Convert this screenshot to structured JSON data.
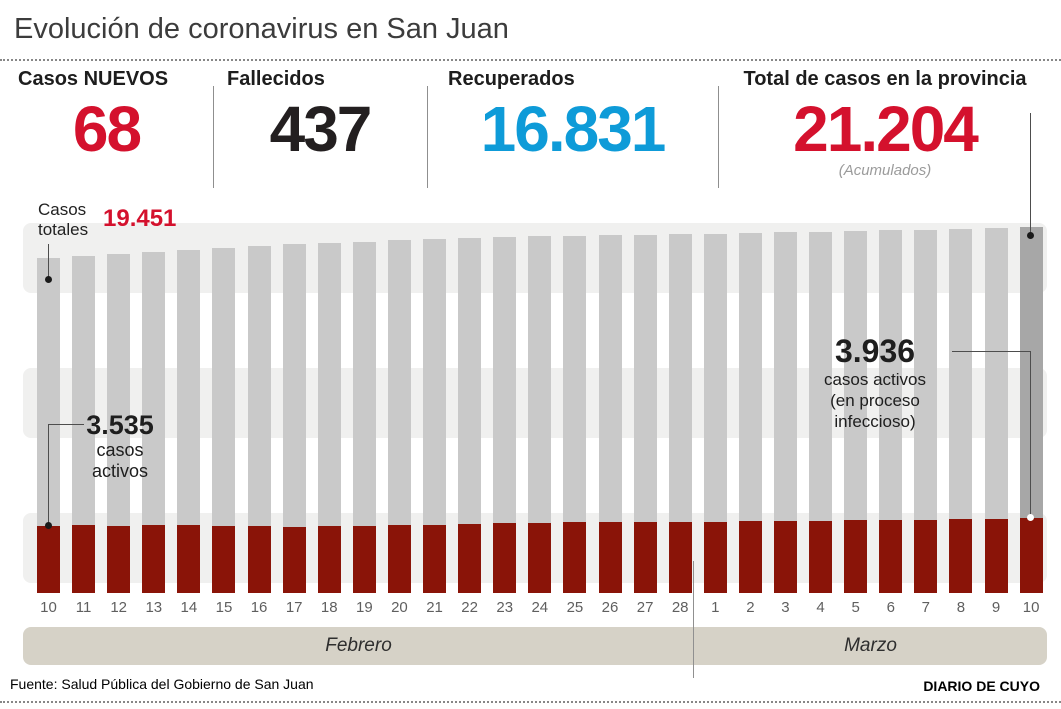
{
  "title": "Evolución de coronavirus en San Juan",
  "stats": [
    {
      "label": "Casos NUEVOS",
      "value": "68",
      "color": "#d4112d"
    },
    {
      "label": "Fallecidos",
      "value": "437",
      "color": "#231f20"
    },
    {
      "label": "Recuperados",
      "value": "16.831",
      "color": "#0e9bd8"
    },
    {
      "label": "Total de casos en la provincia",
      "value": "21.204",
      "color": "#d4112d",
      "note": "(Acumulados)"
    }
  ],
  "annotations": {
    "totals_callout": {
      "line1": "Casos",
      "line2": "totales",
      "value": "19.451",
      "value_color": "#d4112d"
    },
    "first_active": {
      "value": "3.535",
      "line1": "casos",
      "line2": "activos"
    },
    "last_active": {
      "value": "3.936",
      "line1": "casos activos",
      "line2": "(en proceso",
      "line3": "infeccioso)"
    }
  },
  "chart_data": {
    "type": "bar",
    "title": "Evolución de coronavirus en San Juan",
    "x_tick_labels": [
      "10",
      "11",
      "12",
      "13",
      "14",
      "15",
      "16",
      "17",
      "18",
      "19",
      "20",
      "21",
      "22",
      "23",
      "24",
      "25",
      "26",
      "27",
      "28",
      "1",
      "2",
      "3",
      "4",
      "5",
      "6",
      "7",
      "8",
      "9",
      "10"
    ],
    "month_bands": [
      {
        "label": "Febrero",
        "days": 19
      },
      {
        "label": "Marzo",
        "days": 10
      }
    ],
    "series": [
      {
        "name": "Casos totales",
        "color": "#c9c9c9",
        "values": [
          19451,
          19570,
          19670,
          19760,
          19880,
          19990,
          20110,
          20225,
          20305,
          20380,
          20460,
          20535,
          20595,
          20650,
          20690,
          20730,
          20765,
          20785,
          20805,
          20845,
          20880,
          20920,
          20960,
          21000,
          21035,
          21075,
          21115,
          21150,
          21204
        ]
      },
      {
        "name": "Casos activos (en proceso infeccioso)",
        "color": "#8a1408",
        "values": [
          3535,
          3545,
          3540,
          3548,
          3550,
          3538,
          3515,
          3480,
          3520,
          3538,
          3560,
          3590,
          3640,
          3665,
          3700,
          3715,
          3725,
          3740,
          3748,
          3752,
          3758,
          3765,
          3790,
          3810,
          3830,
          3850,
          3870,
          3895,
          3936
        ]
      }
    ],
    "last_bar_highlight_color": "#a7a7a7",
    "labeled_points": {
      "casos_totales_first": 19451,
      "casos_totales_last": 21204,
      "casos_activos_first": 3535,
      "casos_activos_last": 3936
    },
    "ylim": [
      0,
      21204
    ],
    "grid": "horizontal striped bands",
    "legend_position": "inline annotations"
  },
  "footer": {
    "source": "Fuente: Salud Pública del Gobierno de San Juan",
    "credit": "DIARIO DE CUYO"
  }
}
